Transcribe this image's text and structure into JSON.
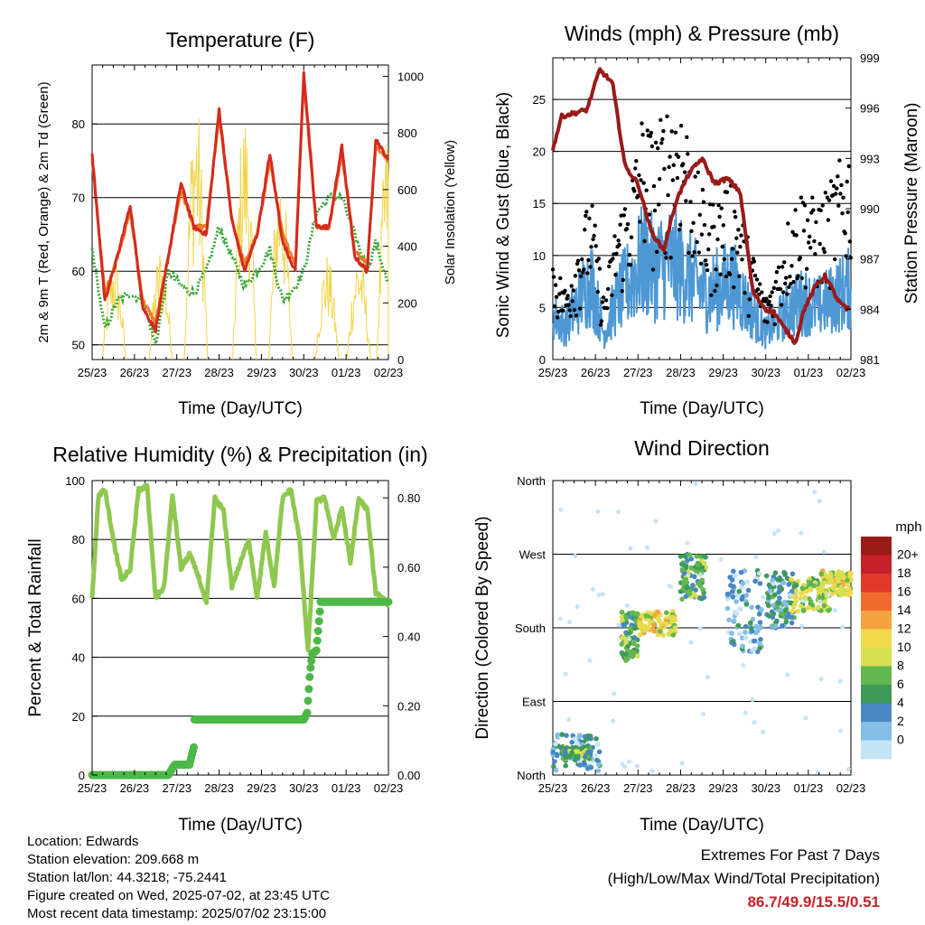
{
  "x_tick_labels": [
    "25/23",
    "26/23",
    "27/23",
    "28/23",
    "29/23",
    "30/23",
    "01/23",
    "02/23"
  ],
  "colors": {
    "temp_2m": "#d42a1f",
    "temp_9m": "#f07a28",
    "dewpoint": "#3aa63a",
    "solar": "#f2d44a",
    "wind": "#4d98d4",
    "gust": "#000000",
    "pressure": "#9b1a1a",
    "rh": "#8fc850",
    "precip": "#4db848"
  },
  "chart_data": [
    {
      "id": "temperature",
      "type": "line",
      "title": "Temperature (F)",
      "xlabel": "Time (Day/UTC)",
      "ylabel": "2m & 9m T (Red, Orange) & 2m Td (Green)",
      "ylabel_right": "Solar Insolation (Yellow)",
      "ylim": [
        48,
        88
      ],
      "ylim_right": [
        0,
        1040
      ],
      "yticks": [
        50,
        60,
        70,
        80
      ],
      "yticks_right": [
        0,
        200,
        400,
        600,
        800,
        1000
      ],
      "grid": true,
      "x": [
        0,
        0.3,
        0.6,
        0.9,
        1.2,
        1.5,
        1.8,
        2.1,
        2.4,
        2.7,
        3.0,
        3.3,
        3.6,
        3.9,
        4.2,
        4.5,
        4.8,
        5.0,
        5.3,
        5.6,
        5.9,
        6.2,
        6.5,
        6.7,
        7.0
      ],
      "series": [
        {
          "key": "t2m",
          "values": [
            76,
            56,
            62,
            69,
            55,
            52,
            62,
            72,
            66,
            65,
            82,
            67,
            60,
            65,
            76,
            64,
            60,
            87,
            66,
            66,
            77,
            62,
            60,
            78,
            75
          ]
        },
        {
          "key": "t9m",
          "values": [
            75,
            57,
            62,
            68,
            56,
            53,
            62,
            71,
            66,
            66,
            81,
            67,
            61,
            65,
            75,
            65,
            61,
            86,
            66,
            66,
            76,
            63,
            61,
            77,
            75
          ]
        },
        {
          "key": "td",
          "values": [
            63,
            52,
            56,
            57,
            56,
            50,
            60,
            58,
            57,
            60,
            66,
            62,
            58,
            60,
            63,
            56,
            58,
            60,
            68,
            70,
            70,
            65,
            60,
            64,
            58
          ]
        }
      ],
      "solar_peaks": [
        {
          "x": 0.52,
          "v": 380
        },
        {
          "x": 1.62,
          "v": 410
        },
        {
          "x": 2.45,
          "v": 960
        },
        {
          "x": 3.6,
          "v": 900
        },
        {
          "x": 4.45,
          "v": 720
        },
        {
          "x": 5.55,
          "v": 380
        },
        {
          "x": 6.3,
          "v": 400
        },
        {
          "x": 7.0,
          "v": 860
        }
      ]
    },
    {
      "id": "winds",
      "type": "line",
      "title": "Winds (mph) & Pressure (mb)",
      "xlabel": "Time (Day/UTC)",
      "ylabel": "Sonic Wind & Gust (Blue, Black)",
      "ylabel_right": "Station Pressure (Maroon)",
      "ylim": [
        0,
        29
      ],
      "ylim_right": [
        981,
        999
      ],
      "yticks": [
        0,
        5,
        10,
        15,
        20,
        25
      ],
      "yticks_right": [
        981,
        984,
        987,
        990,
        993,
        996,
        999
      ],
      "grid": true,
      "wind_envelope_x": [
        0,
        0.3,
        0.6,
        0.9,
        1.2,
        1.5,
        1.8,
        2.1,
        2.4,
        2.7,
        3.0,
        3.3,
        3.6,
        3.9,
        4.2,
        4.5,
        4.8,
        5.0,
        5.3,
        5.6,
        5.9,
        6.2,
        6.5,
        6.7,
        7.0
      ],
      "wind_max": [
        7,
        5,
        9,
        12,
        4,
        9,
        12,
        15,
        14,
        15,
        14,
        12,
        10,
        11,
        12,
        9,
        6,
        4,
        6,
        8,
        9,
        8,
        9,
        10,
        11
      ],
      "gust_max": [
        10,
        7,
        12,
        16,
        6,
        14,
        17,
        24,
        22,
        25,
        26,
        20,
        15,
        16,
        18,
        13,
        9,
        6,
        10,
        15,
        17,
        15,
        17,
        19,
        21
      ],
      "pressure_x": [
        0,
        0.2,
        0.5,
        0.8,
        1.1,
        1.4,
        1.7,
        2.0,
        2.3,
        2.6,
        2.9,
        3.2,
        3.5,
        3.8,
        4.1,
        4.4,
        4.7,
        5.0,
        5.2,
        5.4,
        5.7,
        5.9,
        6.2,
        6.4,
        6.7,
        6.9,
        7.0
      ],
      "pressure": [
        993.5,
        995.5,
        995.7,
        995.9,
        998.3,
        997.5,
        992.5,
        991.5,
        988.7,
        987.5,
        990.5,
        992.1,
        993,
        991.5,
        991.8,
        991,
        985,
        984,
        983.8,
        983,
        982,
        984,
        985.5,
        986,
        984.5,
        984,
        984
      ]
    },
    {
      "id": "humidity",
      "type": "line",
      "title": "Relative Humidity (%) & Precipitation (in)",
      "xlabel": "Time (Day/UTC)",
      "ylabel": "Percent & Total Rainfall",
      "ylim": [
        0,
        100
      ],
      "ylim_right": [
        0,
        0.85
      ],
      "yticks": [
        0,
        20,
        40,
        60,
        80,
        100
      ],
      "yticks_right": [
        0.0,
        0.2,
        0.4,
        0.6,
        0.8
      ],
      "grid": true,
      "rh_x": [
        0,
        0.15,
        0.3,
        0.5,
        0.7,
        0.9,
        1.1,
        1.3,
        1.5,
        1.7,
        1.9,
        2.1,
        2.3,
        2.5,
        2.7,
        2.9,
        3.1,
        3.3,
        3.5,
        3.7,
        3.9,
        4.1,
        4.3,
        4.5,
        4.7,
        4.9,
        5.1,
        5.3,
        5.5,
        5.7,
        5.9,
        6.1,
        6.3,
        6.5,
        6.7,
        7.0
      ],
      "rh": [
        60,
        95,
        97,
        80,
        66,
        70,
        97,
        98,
        60,
        64,
        95,
        70,
        75,
        68,
        58,
        94,
        90,
        64,
        72,
        80,
        60,
        82,
        64,
        94,
        97,
        80,
        42,
        93,
        94,
        80,
        91,
        72,
        94,
        90,
        62,
        58
      ],
      "precip_x": [
        0,
        1.0,
        1.8,
        1.95,
        2.0,
        2.3,
        2.4,
        2.42,
        5.0,
        5.08,
        5.15,
        5.2,
        5.3,
        5.4,
        5.5,
        7.0
      ],
      "precip": [
        0,
        0,
        0,
        0.03,
        0.03,
        0.03,
        0.08,
        0.16,
        0.16,
        0.18,
        0.3,
        0.35,
        0.36,
        0.5,
        0.5,
        0.5
      ]
    },
    {
      "id": "direction",
      "type": "scatter",
      "title": "Wind Direction",
      "xlabel": "Time (Day/UTC)",
      "ylabel": "Direction (Colored By Speed)",
      "ylim": [
        0,
        360
      ],
      "yticks": [
        0,
        90,
        180,
        270,
        360
      ],
      "ytick_labels": [
        "North",
        "East",
        "South",
        "West",
        "North"
      ],
      "grid": true,
      "legend": {
        "title": "mph",
        "labels": [
          "20+",
          "18",
          "16",
          "14",
          "12",
          "10",
          "8",
          "6",
          "4",
          "2",
          "0"
        ],
        "colors": [
          "#9b1a1a",
          "#c8202a",
          "#e0392b",
          "#f06a2e",
          "#f7a240",
          "#f0d84b",
          "#d8e050",
          "#62b84e",
          "#3d9a58",
          "#4a86c4",
          "#84bde6",
          "#c4e4f7"
        ]
      },
      "clusters": [
        {
          "x": [
            0,
            1.1
          ],
          "dir": [
            5,
            50
          ],
          "speed": 3
        },
        {
          "x": [
            0.2,
            0.9
          ],
          "dir": [
            20,
            35
          ],
          "speed": 7
        },
        {
          "x": [
            1.6,
            2.0
          ],
          "dir": [
            140,
            200
          ],
          "speed": 7
        },
        {
          "x": [
            2.0,
            2.9
          ],
          "dir": [
            170,
            200
          ],
          "speed": 11
        },
        {
          "x": [
            3.0,
            3.6
          ],
          "dir": [
            215,
            270
          ],
          "speed": 7
        },
        {
          "x": [
            4.1,
            4.9
          ],
          "dir": [
            150,
            250
          ],
          "speed": 3
        },
        {
          "x": [
            5.0,
            5.7
          ],
          "dir": [
            180,
            250
          ],
          "speed": 5
        },
        {
          "x": [
            5.6,
            6.5
          ],
          "dir": [
            200,
            240
          ],
          "speed": 9
        },
        {
          "x": [
            6.3,
            7.0
          ],
          "dir": [
            220,
            250
          ],
          "speed": 11
        }
      ]
    }
  ],
  "footer": {
    "location": "Location: Edwards",
    "elevation": "Station elevation: 209.668 m",
    "latlon": "Station lat/lon: 44.3218; -75.2441",
    "created": "Figure created on Wed, 2025-07-02, at 23:45 UTC",
    "recent": "Most recent data timestamp: 2025/07/02 23:15:00"
  },
  "extremes": {
    "title": "Extremes For Past 7 Days",
    "subtitle": "(High/Low/Max Wind/Total Precipitation)",
    "values": "86.7/49.9/15.5/0.51"
  }
}
